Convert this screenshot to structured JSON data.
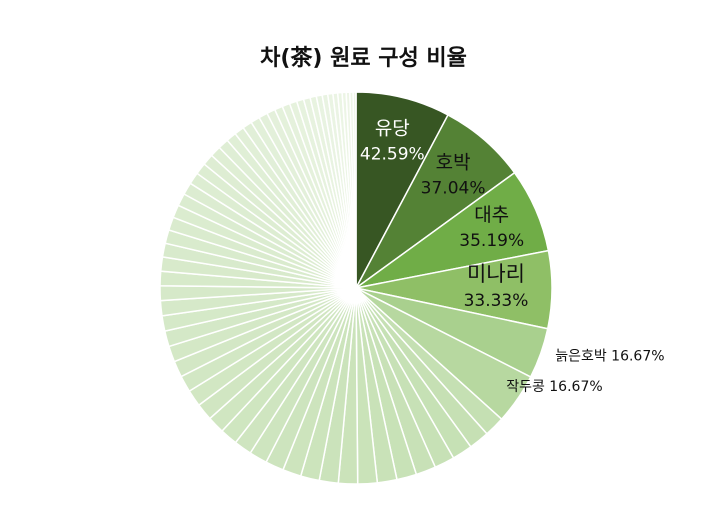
{
  "chart_data": {
    "type": "pie",
    "title": "차(茶) 원료 구성 비율",
    "slices": [
      {
        "label": "유당",
        "value_label": "42.59%",
        "value": 42.59,
        "color": "#375623",
        "text_color": "#ffffff"
      },
      {
        "label": "호박",
        "value_label": "37.04%",
        "value": 37.04,
        "color": "#548235",
        "text_color": "#111111"
      },
      {
        "label": "대추",
        "value_label": "35.19%",
        "value": 35.19,
        "color": "#70ad47",
        "text_color": "#111111"
      },
      {
        "label": "미나리",
        "value_label": "33.33%",
        "value": 33.33,
        "color": "#8fbf66",
        "text_color": "#111111"
      },
      {
        "label": "늙은호박",
        "value_label": "16.67%",
        "value": 16.67,
        "color": "#a9d08e",
        "text_color": "#111111"
      },
      {
        "label": "작두콩",
        "value_label": "16.67%",
        "value": 16.67,
        "color": "#b7d8a0",
        "text_color": "#111111"
      }
    ],
    "other_slices": {
      "count": 60,
      "color_start": "#c5e0b3",
      "color_end": "#eef6e8",
      "unlabeled": true
    },
    "legend": "none"
  }
}
